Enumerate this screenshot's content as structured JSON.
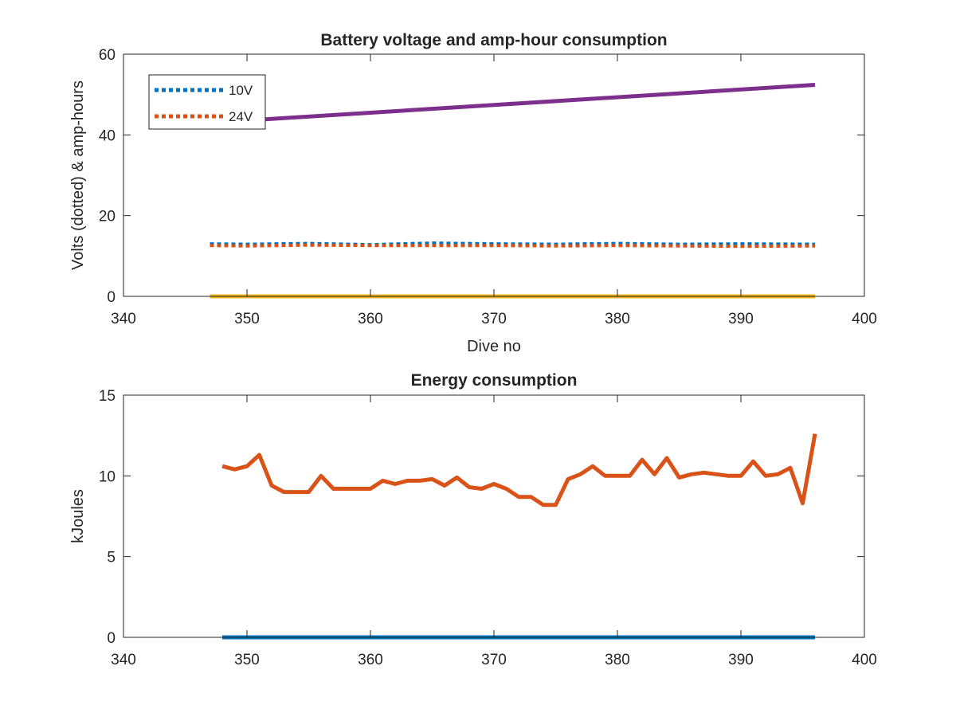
{
  "chart_data": [
    {
      "type": "line",
      "title": "Battery voltage and amp-hour consumption",
      "xlabel": "Dive no",
      "ylabel": "Volts (dotted) & amp-hours",
      "xlim": [
        340,
        400
      ],
      "ylim": [
        0,
        60
      ],
      "xticks": [
        "340",
        "350",
        "360",
        "370",
        "380",
        "390",
        "400"
      ],
      "yticks": [
        "0",
        "20",
        "40",
        "60"
      ],
      "grid": false,
      "legend_position": "top-left",
      "series": [
        {
          "name": "10V",
          "style": "dotted",
          "color": "#0072BD",
          "x": [
            347,
            350,
            355,
            360,
            365,
            370,
            375,
            380,
            385,
            390,
            396
          ],
          "y": [
            13,
            12.9,
            13.1,
            12.8,
            13.2,
            13.0,
            12.9,
            13.1,
            12.9,
            13.0,
            12.9
          ]
        },
        {
          "name": "24V",
          "style": "dotted",
          "color": "#D95319",
          "x": [
            347,
            350,
            355,
            360,
            365,
            370,
            375,
            380,
            385,
            390,
            396
          ],
          "y": [
            12.6,
            12.5,
            12.7,
            12.6,
            12.6,
            12.6,
            12.5,
            12.6,
            12.5,
            12.4,
            12.5
          ]
        },
        {
          "style": "solid",
          "color": "#EDB120",
          "x": [
            347,
            396
          ],
          "y": [
            0,
            0
          ]
        },
        {
          "style": "solid",
          "color": "#7E2F8E",
          "x": [
            347,
            396
          ],
          "y": [
            43,
            52.4
          ]
        }
      ]
    },
    {
      "type": "line",
      "title": "Energy consumption",
      "xlabel": "",
      "ylabel": "kJoules",
      "xlim": [
        340,
        400
      ],
      "ylim": [
        0,
        15
      ],
      "xticks": [
        "340",
        "350",
        "360",
        "370",
        "380",
        "390",
        "400"
      ],
      "yticks": [
        "0",
        "5",
        "10",
        "15"
      ],
      "grid": false,
      "series": [
        {
          "style": "solid",
          "color": "#0072BD",
          "x": [
            348,
            396
          ],
          "y": [
            0,
            0
          ]
        },
        {
          "style": "solid",
          "color": "#D95319",
          "x": [
            348,
            349,
            350,
            351,
            352,
            353,
            354,
            355,
            356,
            357,
            358,
            359,
            360,
            361,
            362,
            363,
            364,
            365,
            366,
            367,
            368,
            369,
            370,
            371,
            372,
            373,
            374,
            375,
            376,
            377,
            378,
            379,
            380,
            381,
            382,
            383,
            384,
            385,
            386,
            387,
            388,
            389,
            390,
            391,
            392,
            393,
            394,
            395,
            396
          ],
          "y": [
            10.6,
            10.4,
            10.6,
            11.3,
            9.4,
            9.0,
            9.0,
            9.0,
            10.0,
            9.2,
            9.2,
            9.2,
            9.2,
            9.7,
            9.5,
            9.7,
            9.7,
            9.8,
            9.4,
            9.9,
            9.3,
            9.2,
            9.5,
            9.2,
            8.7,
            8.7,
            8.2,
            8.2,
            9.8,
            10.1,
            10.6,
            10.0,
            10.0,
            10.0,
            11.0,
            10.1,
            11.1,
            9.9,
            10.1,
            10.2,
            10.1,
            10.0,
            10.0,
            10.9,
            10.0,
            10.1,
            10.5,
            8.3,
            12.6
          ]
        }
      ]
    }
  ]
}
